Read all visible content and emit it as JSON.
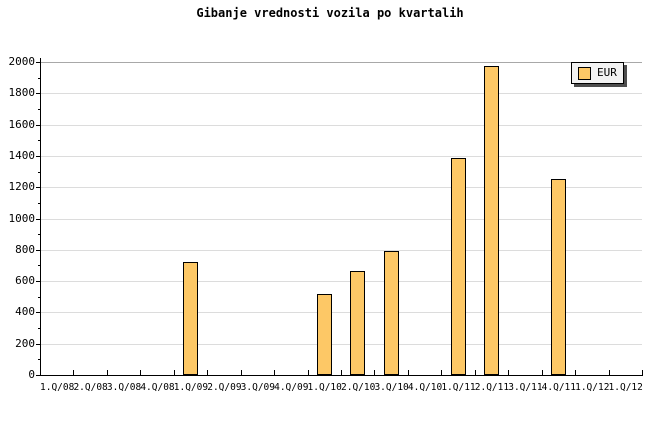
{
  "title": "Gibanje vrednosti vozila po kvartalih",
  "legend": {
    "label": "EUR"
  },
  "colors": {
    "bar_fill": "#FDC866",
    "bar_border": "#000000",
    "gridline": "#DCDCDC",
    "plot_top_border": "#A8A8A8",
    "axis": "#000000",
    "legend_bg": "#F2F2F2",
    "background": "#FFFFFF"
  },
  "chart_data": {
    "type": "bar",
    "title": "Gibanje vrednosti vozila po kvartalih",
    "categories": [
      "1.Q/08",
      "2.Q/08",
      "3.Q/08",
      "4.Q/08",
      "1.Q/09",
      "2.Q/09",
      "3.Q/09",
      "4.Q/09",
      "1.Q/10",
      "2.Q/10",
      "3.Q/10",
      "4.Q/10",
      "1.Q/11",
      "2.Q/11",
      "3.Q/11",
      "4.Q/11",
      "1.Q/12",
      "1.Q/12"
    ],
    "series": [
      {
        "name": "EUR",
        "values": [
          null,
          null,
          null,
          null,
          720,
          null,
          null,
          null,
          520,
          665,
          790,
          null,
          1385,
          1975,
          null,
          1250,
          null,
          null
        ]
      }
    ],
    "xlabel": "",
    "ylabel": "",
    "ylim": [
      0,
      2000
    ],
    "yticks": [
      0,
      200,
      400,
      600,
      800,
      1000,
      1200,
      1400,
      1600,
      1800,
      2000
    ],
    "minor_ytick_step": 100,
    "grid": true,
    "legend_position": "top-right"
  }
}
